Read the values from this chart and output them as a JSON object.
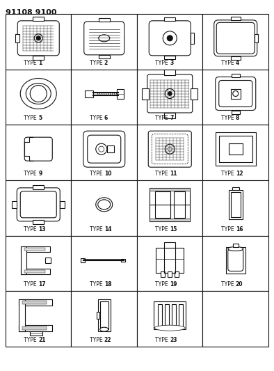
{
  "title": "91108 9100",
  "background_color": "#ffffff",
  "border_color": "#222222",
  "grid_rows": 6,
  "grid_cols": 4,
  "types": [
    {
      "id": 1,
      "label": "TYPE 1",
      "row": 0,
      "col": 0
    },
    {
      "id": 2,
      "label": "TYPE 2",
      "row": 0,
      "col": 1
    },
    {
      "id": 3,
      "label": "TYPE 3",
      "row": 0,
      "col": 2
    },
    {
      "id": 4,
      "label": "TYPE 4",
      "row": 0,
      "col": 3
    },
    {
      "id": 5,
      "label": "TYPE 5",
      "row": 1,
      "col": 0
    },
    {
      "id": 6,
      "label": "TYPE 6",
      "row": 1,
      "col": 1
    },
    {
      "id": 7,
      "label": "TYPE 7",
      "row": 1,
      "col": 2
    },
    {
      "id": 8,
      "label": "TYPE 8",
      "row": 1,
      "col": 3
    },
    {
      "id": 9,
      "label": "TYPE 9",
      "row": 2,
      "col": 0
    },
    {
      "id": 10,
      "label": "TYPE 10",
      "row": 2,
      "col": 1
    },
    {
      "id": 11,
      "label": "TYPE 11",
      "row": 2,
      "col": 2
    },
    {
      "id": 12,
      "label": "TYPE 12",
      "row": 2,
      "col": 3
    },
    {
      "id": 13,
      "label": "TYPE 13",
      "row": 3,
      "col": 0
    },
    {
      "id": 14,
      "label": "TYPE 14",
      "row": 3,
      "col": 1
    },
    {
      "id": 15,
      "label": "TYPE 15",
      "row": 3,
      "col": 2
    },
    {
      "id": 16,
      "label": "TYPE 16",
      "row": 3,
      "col": 3
    },
    {
      "id": 17,
      "label": "TYPE 17",
      "row": 4,
      "col": 0
    },
    {
      "id": 18,
      "label": "TYPE 18",
      "row": 4,
      "col": 1
    },
    {
      "id": 19,
      "label": "TYPE 19",
      "row": 4,
      "col": 2
    },
    {
      "id": 20,
      "label": "TYPE 20",
      "row": 4,
      "col": 3
    },
    {
      "id": 21,
      "label": "TYPE 21",
      "row": 5,
      "col": 0
    },
    {
      "id": 22,
      "label": "TYPE 22",
      "row": 5,
      "col": 1
    },
    {
      "id": 23,
      "label": "TYPE 23",
      "row": 5,
      "col": 2
    }
  ],
  "line_color": "#111111",
  "fill_color": "#ffffff",
  "label_fontsize": 5.5,
  "title_fontsize": 8
}
